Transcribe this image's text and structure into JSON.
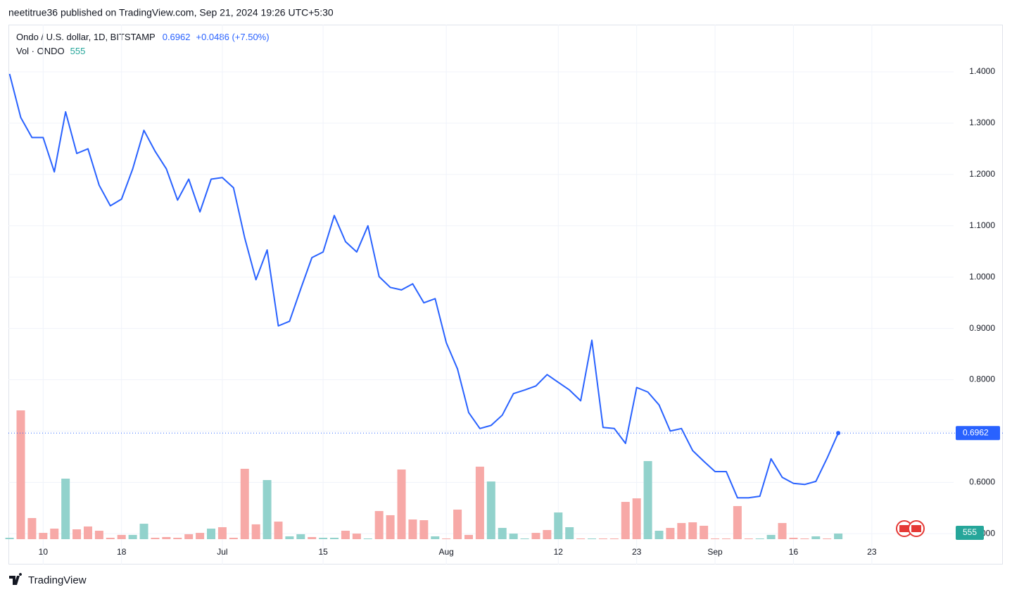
{
  "header": {
    "byline": "neetitrue36 published on TradingView.com, Sep 21, 2024 19:26 UTC+5:30",
    "brand": "TradingView"
  },
  "chart_data": {
    "type": "line",
    "change": "+0.0486 (+7.50%)",
    "grid": true,
    "xlim": [
      -0.1,
      84.3
    ],
    "xticks": [
      {
        "value": 3,
        "label": "10"
      },
      {
        "value": 10,
        "label": "18"
      },
      {
        "value": 19,
        "label": "Jul"
      },
      {
        "value": 28,
        "label": "15"
      },
      {
        "value": 39,
        "label": "Aug"
      },
      {
        "value": 49,
        "label": "12"
      },
      {
        "value": 56,
        "label": "23"
      },
      {
        "value": 63,
        "label": "Sep"
      },
      {
        "value": 70,
        "label": "16"
      },
      {
        "value": 77,
        "label": "23"
      }
    ],
    "ylim": [
      0.44,
      1.492
    ],
    "yticks": [
      {
        "value": 0.5,
        "label": "0.5000"
      },
      {
        "value": 0.6,
        "label": "0.6000"
      },
      {
        "value": 0.7,
        "label": "0.7000"
      },
      {
        "value": 0.8,
        "label": "0.8000"
      },
      {
        "value": 0.9,
        "label": "0.9000"
      },
      {
        "value": 1.0,
        "label": "1.0000"
      },
      {
        "value": 1.1,
        "label": "1.1000"
      },
      {
        "value": 1.2,
        "label": "1.2000"
      },
      {
        "value": 1.3,
        "label": "1.3000"
      },
      {
        "value": 1.4,
        "label": "1.4000"
      }
    ],
    "series": [
      {
        "name": "Ondo / U.S. dollar, 1D, BITSTAMP",
        "color": "#2962ff",
        "values": [
          1.396,
          1.311,
          1.272,
          1.272,
          1.205,
          1.322,
          1.241,
          1.25,
          1.179,
          1.139,
          1.152,
          1.211,
          1.286,
          1.245,
          1.211,
          1.15,
          1.191,
          1.127,
          1.191,
          1.194,
          1.174,
          1.076,
          0.995,
          1.053,
          0.905,
          0.914,
          0.977,
          1.038,
          1.049,
          1.12,
          1.069,
          1.049,
          1.1,
          1.001,
          0.98,
          0.975,
          0.987,
          0.95,
          0.958,
          0.872,
          0.821,
          0.736,
          0.705,
          0.711,
          0.731,
          0.773,
          0.78,
          0.788,
          0.81,
          0.795,
          0.78,
          0.759,
          0.877,
          0.707,
          0.705,
          0.676,
          0.785,
          0.776,
          0.751,
          0.7,
          0.705,
          0.662,
          0.641,
          0.621,
          0.621,
          0.57,
          0.57,
          0.573,
          0.646,
          0.61,
          0.598,
          0.596,
          0.602,
          0.647,
          0.6962
        ]
      },
      {
        "name": "Vol · ONDO",
        "type": "bar",
        "color": "#26a69a",
        "ylim": [
          0,
          14000
        ],
        "values": [
          140,
          12680,
          2080,
          620,
          1040,
          5960,
          970,
          1250,
          830,
          140,
          420,
          420,
          1520,
          140,
          210,
          140,
          490,
          620,
          1040,
          1180,
          140,
          6930,
          1460,
          5820,
          1730,
          280,
          490,
          210,
          140,
          140,
          830,
          550,
          70,
          2770,
          2360,
          6860,
          1940,
          1870,
          280,
          70,
          2910,
          420,
          7140,
          5680,
          1110,
          550,
          70,
          620,
          900,
          2630,
          1180,
          70,
          70,
          70,
          70,
          3670,
          4020,
          7690,
          830,
          1110,
          1590,
          1660,
          1320,
          70,
          70,
          3260,
          70,
          70,
          420,
          1590,
          140,
          70,
          280,
          70,
          555
        ],
        "colors": [
          "#92d2cc",
          "#f7a9a7",
          "#f7a9a7",
          "#f7a9a7",
          "#f7a9a7",
          "#92d2cc",
          "#f7a9a7",
          "#f7a9a7",
          "#f7a9a7",
          "#f7a9a7",
          "#f7a9a7",
          "#92d2cc",
          "#92d2cc",
          "#f7a9a7",
          "#f7a9a7",
          "#f7a9a7",
          "#f7a9a7",
          "#f7a9a7",
          "#92d2cc",
          "#f7a9a7",
          "#f7a9a7",
          "#f7a9a7",
          "#f7a9a7",
          "#92d2cc",
          "#f7a9a7",
          "#92d2cc",
          "#92d2cc",
          "#f7a9a7",
          "#92d2cc",
          "#92d2cc",
          "#f7a9a7",
          "#f7a9a7",
          "#92d2cc",
          "#f7a9a7",
          "#f7a9a7",
          "#f7a9a7",
          "#f7a9a7",
          "#f7a9a7",
          "#92d2cc",
          "#f7a9a7",
          "#f7a9a7",
          "#f7a9a7",
          "#f7a9a7",
          "#92d2cc",
          "#92d2cc",
          "#92d2cc",
          "#92d2cc",
          "#f7a9a7",
          "#f7a9a7",
          "#92d2cc",
          "#92d2cc",
          "#f7a9a7",
          "#92d2cc",
          "#f7a9a7",
          "#f7a9a7",
          "#f7a9a7",
          "#f7a9a7",
          "#92d2cc",
          "#92d2cc",
          "#f7a9a7",
          "#f7a9a7",
          "#f7a9a7",
          "#f7a9a7",
          "#f7a9a7",
          "#f7a9a7",
          "#f7a9a7",
          "#f7a9a7",
          "#92d2cc",
          "#92d2cc",
          "#f7a9a7",
          "#f7a9a7",
          "#f7a9a7",
          "#92d2cc",
          "#f7a9a7",
          "#92d2cc"
        ]
      }
    ]
  }
}
